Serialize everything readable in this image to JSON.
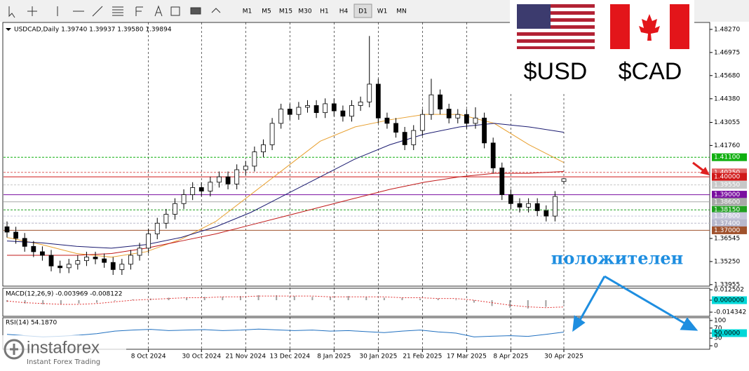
{
  "toolbar": {
    "timeframes": [
      "M1",
      "M5",
      "M15",
      "M30",
      "H1",
      "H4",
      "D1",
      "W1",
      "MN"
    ],
    "active_index": 6
  },
  "flags": [
    "$USD",
    "$CAD"
  ],
  "logo": {
    "name": "instaforex",
    "tagline": "Instant Forex Trading"
  },
  "chart_data": {
    "type": "candlestick",
    "subtitle": "USDCAD,Daily  1.39740 1.39937 1.39580 1.39894",
    "annotations": [
      "положителен"
    ],
    "up_color": "#ffffff",
    "down_color": "#000000",
    "grid": "vertical",
    "categories": [
      null,
      null,
      null,
      null,
      null,
      null,
      null,
      null,
      null,
      null,
      null,
      null,
      null,
      null,
      null,
      null,
      "8 Oct 2024",
      null,
      null,
      null,
      null,
      null,
      "30 Oct 2024",
      null,
      null,
      null,
      null,
      "21 Nov 2024",
      null,
      null,
      null,
      null,
      "13 Dec 2024",
      null,
      null,
      null,
      null,
      "8 Jan 2025",
      null,
      null,
      null,
      null,
      "30 Jan 2025",
      null,
      null,
      null,
      null,
      "21 Feb 2025",
      null,
      null,
      null,
      null,
      "17 Mar 2025",
      null,
      null,
      null,
      null,
      "8 Apr 2025",
      null,
      null,
      null,
      null,
      null,
      "30 Apr 2025"
    ],
    "open": [
      1.372,
      1.369,
      1.3655,
      1.361,
      1.358,
      1.356,
      1.35,
      1.349,
      1.351,
      1.353,
      1.355,
      1.354,
      1.352,
      1.348,
      1.351,
      1.356,
      1.36,
      1.368,
      1.374,
      1.379,
      1.385,
      1.39,
      1.394,
      1.392,
      1.397,
      1.4,
      1.396,
      1.404,
      1.406,
      1.414,
      1.418,
      1.43,
      1.438,
      1.435,
      1.439,
      1.44,
      1.436,
      1.441,
      1.437,
      1.434,
      1.44,
      1.442,
      1.452,
      1.433,
      1.43,
      1.425,
      1.418,
      1.426,
      1.435,
      1.446,
      1.438,
      1.433,
      1.435,
      1.43,
      1.433,
      1.419,
      1.405,
      1.39,
      1.385,
      1.383,
      1.385,
      1.381,
      1.378,
      1.3974
    ],
    "high": [
      1.375,
      1.372,
      1.3685,
      1.364,
      1.361,
      1.359,
      1.353,
      1.354,
      1.356,
      1.358,
      1.358,
      1.357,
      1.355,
      1.354,
      1.359,
      1.363,
      1.371,
      1.377,
      1.382,
      1.388,
      1.393,
      1.397,
      1.397,
      1.4,
      1.403,
      1.403,
      1.407,
      1.409,
      1.417,
      1.421,
      1.433,
      1.441,
      1.441,
      1.442,
      1.443,
      1.443,
      1.444,
      1.444,
      1.44,
      1.443,
      1.445,
      1.479,
      1.455,
      1.436,
      1.433,
      1.428,
      1.429,
      1.438,
      1.455,
      1.449,
      1.441,
      1.438,
      1.438,
      1.439,
      1.436,
      1.422,
      1.408,
      1.393,
      1.388,
      1.388,
      1.388,
      1.384,
      1.392,
      1.39937
    ],
    "low": [
      1.366,
      1.3625,
      1.358,
      1.355,
      1.353,
      1.347,
      1.346,
      1.346,
      1.348,
      1.35,
      1.351,
      1.349,
      1.345,
      1.345,
      1.348,
      1.353,
      1.357,
      1.365,
      1.371,
      1.376,
      1.382,
      1.387,
      1.389,
      1.389,
      1.394,
      1.393,
      1.393,
      1.401,
      1.403,
      1.411,
      1.415,
      1.427,
      1.432,
      1.432,
      1.436,
      1.433,
      1.433,
      1.434,
      1.431,
      1.431,
      1.437,
      1.439,
      1.43,
      1.427,
      1.422,
      1.415,
      1.415,
      1.423,
      1.432,
      1.435,
      1.43,
      1.43,
      1.427,
      1.427,
      1.416,
      1.402,
      1.387,
      1.382,
      1.38,
      1.38,
      1.378,
      1.375,
      1.375,
      1.3958
    ],
    "close": [
      1.369,
      1.3655,
      1.361,
      1.358,
      1.356,
      1.35,
      1.349,
      1.351,
      1.353,
      1.355,
      1.354,
      1.352,
      1.348,
      1.351,
      1.356,
      1.36,
      1.368,
      1.374,
      1.379,
      1.385,
      1.39,
      1.394,
      1.392,
      1.397,
      1.4,
      1.396,
      1.404,
      1.406,
      1.414,
      1.418,
      1.43,
      1.438,
      1.435,
      1.439,
      1.44,
      1.436,
      1.441,
      1.437,
      1.434,
      1.44,
      1.442,
      1.452,
      1.433,
      1.43,
      1.425,
      1.418,
      1.426,
      1.435,
      1.446,
      1.438,
      1.433,
      1.435,
      1.43,
      1.433,
      1.419,
      1.405,
      1.39,
      1.385,
      1.383,
      1.385,
      1.381,
      1.378,
      1.389,
      1.39894
    ],
    "overlays": [
      {
        "color": "#e8a030",
        "values": [
          1.366,
          1.362,
          1.357,
          1.355,
          1.358,
          1.365,
          1.375,
          1.39,
          1.405,
          1.42,
          1.428,
          1.432,
          1.435,
          1.435,
          1.43,
          1.418,
          1.408
        ]
      },
      {
        "color": "#1a1a70",
        "values": [
          1.364,
          1.363,
          1.361,
          1.36,
          1.362,
          1.366,
          1.372,
          1.38,
          1.39,
          1.4,
          1.41,
          1.418,
          1.424,
          1.428,
          1.43,
          1.428,
          1.425
        ]
      },
      {
        "color": "#c01818",
        "values": [
          1.356,
          1.356,
          1.356,
          1.357,
          1.36,
          1.364,
          1.368,
          1.373,
          1.378,
          1.383,
          1.388,
          1.393,
          1.397,
          1.4,
          1.402,
          1.402,
          1.403
        ]
      }
    ],
    "ylim": [
      1.3387,
      1.4866
    ],
    "yticks": [
      {
        "value": 1.4827,
        "label": "1.48270"
      },
      1.46975,
      {
        "value": 1.4568,
        "label": "1.45680"
      },
      {
        "value": 1.4438,
        "label": "1.44380"
      },
      1.43055,
      {
        "value": 1.4176,
        "label": "1.41760"
      },
      1.36545,
      {
        "value": 1.3525,
        "label": "1.35250"
      },
      1.33955
    ],
    "levels": [
      {
        "value": 1.411,
        "label": "1.41100",
        "color": "#10b010",
        "dash": true
      },
      {
        "value": 1.4025,
        "label": "1.40250",
        "color": "#e06060",
        "dash": true
      },
      {
        "value": 1.4,
        "label": "1.40000",
        "color": "#d01818",
        "dash": false
      },
      {
        "value": 1.3955,
        "label": "1.39550",
        "color": "#c8c8c8",
        "dash": true
      },
      {
        "value": 1.39,
        "label": "1.39000",
        "color": "#7a0ea0",
        "dash": false
      },
      {
        "value": 1.386,
        "label": "1.38600",
        "color": "#a8a8a8",
        "dash": false
      },
      {
        "value": 1.3815,
        "label": "1.38150",
        "color": "#20a020",
        "dash": true
      },
      {
        "value": 1.378,
        "label": "1.37800",
        "color": "#c8c8dc",
        "dash": true
      },
      {
        "value": 1.374,
        "label": "1.37400",
        "color": "#b8b8cc",
        "dash": true
      },
      {
        "value": 1.37,
        "label": "1.37000",
        "color": "#a0522d",
        "dash": false
      }
    ],
    "macd": {
      "title": "MACD(12,26,9) -0.003969 -0.008122",
      "color": "#a0a0a0",
      "signal_color": "#e03030",
      "ylim": [
        -0.0185,
        0.0135
      ],
      "yticks": [
        0.012502,
        {
          "value": 0,
          "label": "0.000000"
        },
        -0.014342
      ],
      "values": [
        -0.002,
        -0.004,
        -0.005,
        -0.005,
        -0.004,
        -0.003,
        -0.001,
        0.001,
        0.002,
        0.003,
        0.003,
        0.004,
        0.004,
        0.005,
        0.006,
        0.006,
        0.005,
        0.004,
        0.004,
        0.005,
        0.004,
        0.003,
        0.003,
        0.002,
        0.002,
        0.001,
        -0.003,
        -0.007,
        -0.009,
        -0.01,
        -0.008,
        -0.003969
      ],
      "signal": [
        -0.001,
        -0.003,
        -0.004,
        -0.005,
        -0.005,
        -0.004,
        -0.002,
        0,
        0.001,
        0.002,
        0.003,
        0.003,
        0.004,
        0.004,
        0.005,
        0.005,
        0.005,
        0.005,
        0.004,
        0.004,
        0.004,
        0.004,
        0.003,
        0.003,
        0.002,
        0.002,
        0,
        -0.003,
        -0.006,
        -0.008,
        -0.009,
        -0.008122
      ]
    },
    "rsi": {
      "title": "RSI(14) 54.1870",
      "color": "#2070c0",
      "ylim": [
        0,
        100
      ],
      "yticks": [
        100,
        70,
        {
          "value": 50,
          "label": "50.0000"
        },
        30,
        0
      ],
      "values": [
        45,
        40,
        35,
        38,
        42,
        48,
        58,
        62,
        65,
        60,
        62,
        64,
        60,
        62,
        66,
        63,
        60,
        62,
        58,
        60,
        56,
        52,
        58,
        62,
        55,
        50,
        35,
        38,
        40,
        37,
        45,
        54.187
      ]
    }
  }
}
